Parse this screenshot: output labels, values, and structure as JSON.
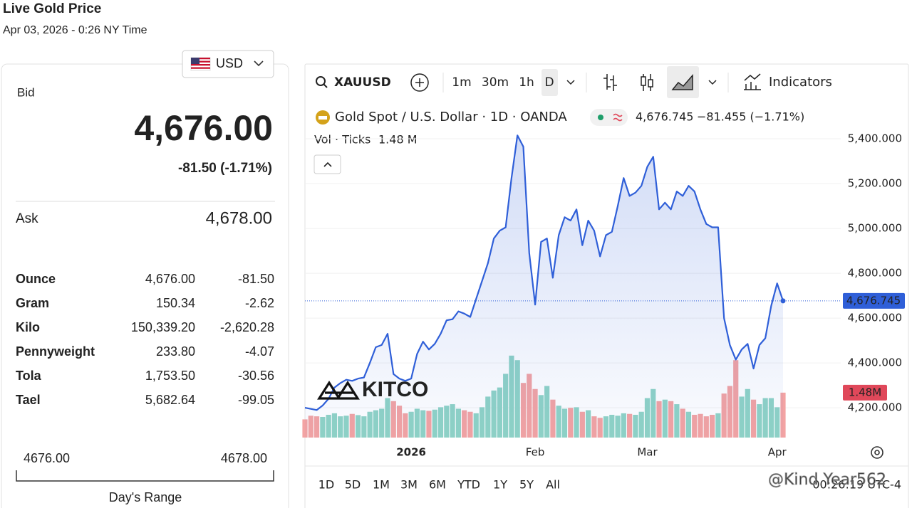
{
  "header": {
    "title": "Live Gold Price",
    "timestamp": "Apr 03, 2026 - 0:26 NY Time"
  },
  "currency": "USD",
  "quote": {
    "bid_label": "Bid",
    "bid": "4,676.00",
    "change": "-81.50 (-1.71%)",
    "ask_label": "Ask",
    "ask": "4,678.00"
  },
  "units": [
    [
      "Ounce",
      "4,676.00",
      "-81.50"
    ],
    [
      "Gram",
      "150.34",
      "-2.62"
    ],
    [
      "Kilo",
      "150,339.20",
      "-2,620.28"
    ],
    [
      "Pennyweight",
      "233.80",
      "-4.07"
    ],
    [
      "Tola",
      "1,753.50",
      "-30.56"
    ],
    [
      "Tael",
      "5,682.64",
      "-99.05"
    ]
  ],
  "day_range": {
    "low": "4676.00",
    "high": "4678.00",
    "label": "Day's Range"
  },
  "toolbar": {
    "symbol": "XAUUSD",
    "intervals": [
      "1m",
      "30m",
      "1h",
      "D"
    ],
    "indicators": "Indicators"
  },
  "legend": {
    "instrument": "Gold Spot / U.S. Dollar · 1D · OANDA",
    "price": "4,676.745",
    "change": "−81.455 (−1.71%)",
    "volume_title": "Vol · Ticks",
    "volume_value": "1.48 M"
  },
  "logo": "KITCO",
  "ranges": [
    "1D",
    "5D",
    "1M",
    "3M",
    "6M",
    "YTD",
    "1Y",
    "5Y",
    "All"
  ],
  "clock": "00:26:19 UTC-4",
  "watermark": "@Kind Year562",
  "chart_data": {
    "type": "line",
    "categories": [
      null,
      null,
      null,
      null,
      null,
      null,
      null,
      null,
      null,
      null,
      null,
      null,
      null,
      null,
      null,
      null,
      null,
      null,
      "2026",
      null,
      null,
      null,
      null,
      null,
      null,
      null,
      null,
      null,
      null,
      null,
      null,
      null,
      null,
      null,
      null,
      null,
      null,
      null,
      null,
      "Feb",
      null,
      null,
      null,
      null,
      null,
      null,
      null,
      null,
      null,
      null,
      null,
      null,
      null,
      null,
      null,
      null,
      null,
      null,
      "Mar",
      null,
      null,
      null,
      null,
      null,
      null,
      null,
      null,
      null,
      null,
      null,
      null,
      null,
      null,
      null,
      null,
      null,
      null,
      null,
      null,
      null,
      "Apr",
      null
    ],
    "values": [
      4200,
      4195,
      4190,
      4210,
      4240,
      4290,
      4310,
      4325,
      4320,
      4330,
      4335,
      4400,
      4470,
      4480,
      4530,
      4350,
      4330,
      4320,
      4330,
      4440,
      4495,
      4460,
      4485,
      4530,
      4590,
      4595,
      4630,
      4620,
      4605,
      4685,
      4765,
      4845,
      4955,
      4990,
      5005,
      5225,
      5415,
      5365,
      4890,
      4660,
      4940,
      4955,
      4780,
      4970,
      5050,
      5035,
      5085,
      4925,
      5035,
      4990,
      4875,
      4970,
      4985,
      5100,
      5225,
      5145,
      5160,
      5190,
      5275,
      5320,
      5085,
      5115,
      5085,
      5165,
      5145,
      5190,
      5165,
      5085,
      5020,
      5005,
      5005,
      4600,
      4480,
      4415,
      4460,
      4485,
      4375,
      4480,
      4510,
      4655,
      4755,
      4676.745
    ],
    "color": "#2f5fd8",
    "last_price_tag": "4,676.745",
    "volume": {
      "axis": "y2",
      "up_color": "#8fd3c6",
      "down_color": "#f3a3a3",
      "values": [
        0.6,
        0.72,
        0.7,
        0.68,
        0.75,
        0.8,
        0.7,
        0.72,
        0.78,
        0.74,
        0.7,
        0.85,
        0.9,
        0.95,
        1.3,
        1.2,
        1.05,
        0.8,
        0.85,
        0.95,
        0.9,
        0.88,
        0.92,
        1.0,
        1.05,
        1.1,
        0.95,
        0.9,
        0.85,
        0.8,
        1.0,
        1.35,
        1.55,
        1.65,
        2.1,
        2.7,
        2.55,
        1.8,
        2.1,
        1.6,
        1.4,
        1.7,
        1.25,
        1.05,
        0.95,
        0.98,
        1.0,
        0.85,
        0.9,
        0.7,
        0.65,
        0.7,
        0.75,
        0.72,
        0.8,
        0.78,
        0.75,
        0.85,
        1.3,
        1.6,
        1.2,
        1.25,
        1.2,
        1.1,
        0.95,
        0.85,
        0.75,
        0.78,
        0.7,
        0.75,
        0.8,
        1.45,
        1.7,
        2.55,
        1.35,
        1.6,
        1.25,
        1.1,
        1.3,
        1.3,
        1.0,
        1.48
      ],
      "last_tag": "1.48M"
    },
    "ylim": [
      4067,
      5543
    ],
    "yticks": [
      {
        "value": 4200,
        "label": "4,200.000"
      },
      {
        "value": 4400,
        "label": "4,400.000"
      },
      {
        "value": 4600,
        "label": "4,600.000"
      },
      {
        "value": 4800,
        "label": "4,800.000"
      },
      {
        "value": 5000,
        "label": "5,000.000"
      },
      {
        "value": 5200,
        "label": "5,200.000"
      },
      {
        "value": 5400,
        "label": "5,400.000"
      }
    ],
    "y2lim": [
      0,
      10.9
    ],
    "grid": true
  }
}
